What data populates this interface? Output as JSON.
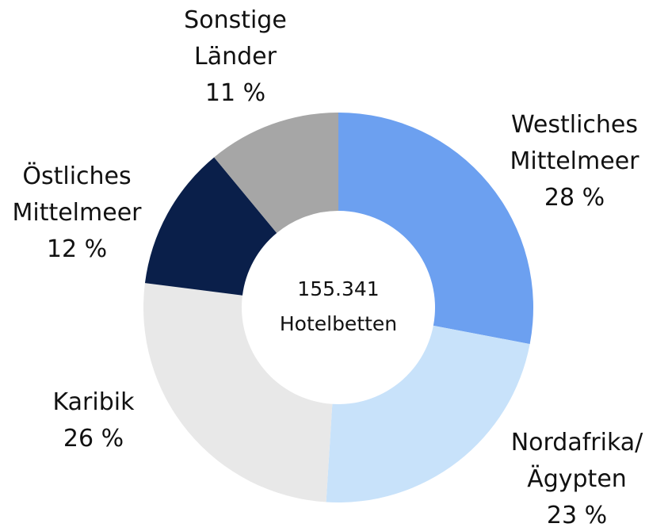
{
  "chart_data": {
    "type": "donut",
    "center_label": "155.341\nHotelbetten",
    "categories": [
      "Westliches\nMittelmeer",
      "Nordafrika/\nÄgypten",
      "Karibik",
      "Östliches\nMittelmeer",
      "Sonstige\nLänder"
    ],
    "values": [
      28,
      23,
      26,
      12,
      11
    ],
    "value_labels": [
      "28 %",
      "23 %",
      "26 %",
      "12 %",
      "11 %"
    ],
    "colors": [
      "#6ca0f0",
      "#c8e2fa",
      "#e8e8e8",
      "#0a1f4a",
      "#a6a6a6"
    ]
  }
}
